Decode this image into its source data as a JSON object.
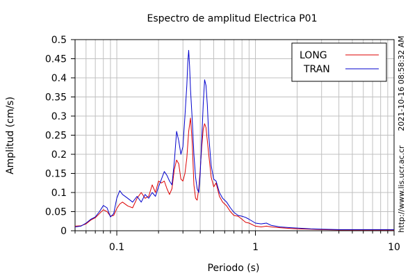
{
  "chart_data": {
    "type": "line",
    "title": "Espectro de amplitud Electrica P01",
    "xlabel": "Periodo (s)",
    "ylabel": "Amplitud (cm/s)",
    "x_scale": "log",
    "xlim": [
      0.05,
      10
    ],
    "ylim": [
      0,
      0.5
    ],
    "grid": true,
    "legend_position": "top-right",
    "x_ticks": [
      {
        "value": 0.1,
        "label": "0.1"
      },
      {
        "value": 1,
        "label": "1"
      },
      {
        "value": 10,
        "label": "10"
      }
    ],
    "y_ticks": [
      {
        "value": 0,
        "label": "0"
      },
      {
        "value": 0.05,
        "label": "0.05"
      },
      {
        "value": 0.1,
        "label": "0.1"
      },
      {
        "value": 0.15,
        "label": "0.15"
      },
      {
        "value": 0.2,
        "label": "0.2"
      },
      {
        "value": 0.25,
        "label": "0.25"
      },
      {
        "value": 0.3,
        "label": "0.3"
      },
      {
        "value": 0.35,
        "label": "0.35"
      },
      {
        "value": 0.4,
        "label": "0.4"
      },
      {
        "value": 0.45,
        "label": "0.45"
      },
      {
        "value": 0.5,
        "label": "0.5"
      }
    ],
    "series": [
      {
        "name": "LONG",
        "color": "#dd0000",
        "points": [
          [
            0.05,
            0.012
          ],
          [
            0.055,
            0.013
          ],
          [
            0.06,
            0.018
          ],
          [
            0.065,
            0.028
          ],
          [
            0.07,
            0.034
          ],
          [
            0.075,
            0.045
          ],
          [
            0.08,
            0.055
          ],
          [
            0.085,
            0.05
          ],
          [
            0.09,
            0.038
          ],
          [
            0.095,
            0.04
          ],
          [
            0.1,
            0.058
          ],
          [
            0.105,
            0.07
          ],
          [
            0.11,
            0.075
          ],
          [
            0.12,
            0.065
          ],
          [
            0.13,
            0.06
          ],
          [
            0.14,
            0.085
          ],
          [
            0.15,
            0.1
          ],
          [
            0.16,
            0.085
          ],
          [
            0.17,
            0.09
          ],
          [
            0.18,
            0.12
          ],
          [
            0.19,
            0.1
          ],
          [
            0.2,
            0.13
          ],
          [
            0.21,
            0.125
          ],
          [
            0.22,
            0.13
          ],
          [
            0.23,
            0.11
          ],
          [
            0.24,
            0.095
          ],
          [
            0.25,
            0.11
          ],
          [
            0.26,
            0.16
          ],
          [
            0.27,
            0.185
          ],
          [
            0.28,
            0.175
          ],
          [
            0.29,
            0.135
          ],
          [
            0.3,
            0.13
          ],
          [
            0.31,
            0.15
          ],
          [
            0.32,
            0.19
          ],
          [
            0.33,
            0.26
          ],
          [
            0.34,
            0.295
          ],
          [
            0.35,
            0.23
          ],
          [
            0.36,
            0.12
          ],
          [
            0.37,
            0.085
          ],
          [
            0.38,
            0.08
          ],
          [
            0.39,
            0.11
          ],
          [
            0.4,
            0.16
          ],
          [
            0.41,
            0.22
          ],
          [
            0.42,
            0.265
          ],
          [
            0.43,
            0.28
          ],
          [
            0.44,
            0.27
          ],
          [
            0.46,
            0.2
          ],
          [
            0.48,
            0.14
          ],
          [
            0.5,
            0.115
          ],
          [
            0.52,
            0.125
          ],
          [
            0.55,
            0.09
          ],
          [
            0.58,
            0.075
          ],
          [
            0.62,
            0.065
          ],
          [
            0.66,
            0.05
          ],
          [
            0.7,
            0.04
          ],
          [
            0.75,
            0.038
          ],
          [
            0.8,
            0.03
          ],
          [
            0.85,
            0.022
          ],
          [
            0.9,
            0.02
          ],
          [
            1.0,
            0.012
          ],
          [
            1.1,
            0.01
          ],
          [
            1.2,
            0.012
          ],
          [
            1.3,
            0.01
          ],
          [
            1.5,
            0.008
          ],
          [
            1.8,
            0.006
          ],
          [
            2.0,
            0.005
          ],
          [
            2.5,
            0.004
          ],
          [
            3.0,
            0.003
          ],
          [
            4.0,
            0.002
          ],
          [
            5.0,
            0.002
          ],
          [
            7.0,
            0.002
          ],
          [
            10.0,
            0.002
          ]
        ]
      },
      {
        "name": "TRAN",
        "color": "#0000cc",
        "points": [
          [
            0.05,
            0.01
          ],
          [
            0.055,
            0.012
          ],
          [
            0.06,
            0.02
          ],
          [
            0.065,
            0.03
          ],
          [
            0.07,
            0.036
          ],
          [
            0.075,
            0.05
          ],
          [
            0.08,
            0.066
          ],
          [
            0.085,
            0.06
          ],
          [
            0.09,
            0.036
          ],
          [
            0.095,
            0.045
          ],
          [
            0.1,
            0.085
          ],
          [
            0.105,
            0.105
          ],
          [
            0.11,
            0.095
          ],
          [
            0.12,
            0.085
          ],
          [
            0.13,
            0.075
          ],
          [
            0.14,
            0.09
          ],
          [
            0.15,
            0.075
          ],
          [
            0.16,
            0.095
          ],
          [
            0.17,
            0.085
          ],
          [
            0.18,
            0.1
          ],
          [
            0.19,
            0.09
          ],
          [
            0.2,
            0.115
          ],
          [
            0.21,
            0.135
          ],
          [
            0.22,
            0.155
          ],
          [
            0.23,
            0.145
          ],
          [
            0.24,
            0.13
          ],
          [
            0.25,
            0.12
          ],
          [
            0.26,
            0.18
          ],
          [
            0.27,
            0.26
          ],
          [
            0.28,
            0.235
          ],
          [
            0.29,
            0.2
          ],
          [
            0.3,
            0.22
          ],
          [
            0.31,
            0.3
          ],
          [
            0.32,
            0.38
          ],
          [
            0.325,
            0.44
          ],
          [
            0.33,
            0.472
          ],
          [
            0.335,
            0.43
          ],
          [
            0.34,
            0.37
          ],
          [
            0.35,
            0.29
          ],
          [
            0.36,
            0.2
          ],
          [
            0.37,
            0.14
          ],
          [
            0.38,
            0.11
          ],
          [
            0.39,
            0.1
          ],
          [
            0.4,
            0.15
          ],
          [
            0.41,
            0.24
          ],
          [
            0.42,
            0.33
          ],
          [
            0.43,
            0.395
          ],
          [
            0.44,
            0.38
          ],
          [
            0.45,
            0.33
          ],
          [
            0.46,
            0.25
          ],
          [
            0.48,
            0.17
          ],
          [
            0.5,
            0.135
          ],
          [
            0.52,
            0.13
          ],
          [
            0.55,
            0.1
          ],
          [
            0.58,
            0.085
          ],
          [
            0.62,
            0.075
          ],
          [
            0.66,
            0.06
          ],
          [
            0.7,
            0.048
          ],
          [
            0.75,
            0.04
          ],
          [
            0.8,
            0.038
          ],
          [
            0.85,
            0.035
          ],
          [
            0.9,
            0.03
          ],
          [
            1.0,
            0.02
          ],
          [
            1.1,
            0.018
          ],
          [
            1.2,
            0.02
          ],
          [
            1.3,
            0.014
          ],
          [
            1.5,
            0.01
          ],
          [
            1.8,
            0.008
          ],
          [
            2.0,
            0.007
          ],
          [
            2.5,
            0.005
          ],
          [
            3.0,
            0.004
          ],
          [
            4.0,
            0.003
          ],
          [
            5.0,
            0.003
          ],
          [
            7.0,
            0.003
          ],
          [
            10.0,
            0.003
          ]
        ]
      }
    ]
  },
  "side_text": {
    "timestamp": "2021-10-16 08:58:32 AM",
    "url": "http://www.lis.ucr.ac.cr"
  }
}
